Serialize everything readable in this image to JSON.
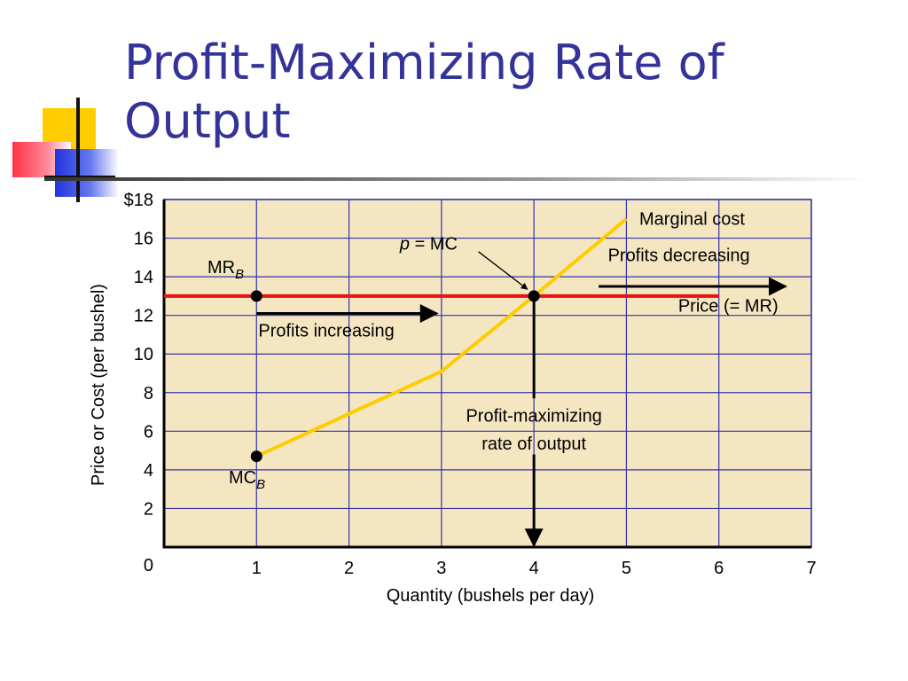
{
  "slide": {
    "title": "Profit-Maximizing Rate of Output"
  },
  "colors": {
    "title": "#333399",
    "plot_background": "#f5e6c2",
    "grid": "#3333aa",
    "price_line": "#ee1111",
    "mc_line": "#ffcc00",
    "arrows": "#000000"
  },
  "chart_data": {
    "type": "line",
    "xlabel": "Quantity (bushels per day)",
    "ylabel": "Price or Cost (per bushel)",
    "xlim": [
      0,
      7
    ],
    "ylim": [
      0,
      18
    ],
    "grid": true,
    "origin_label": "0",
    "x_ticks": [
      "1",
      "2",
      "3",
      "4",
      "5",
      "6",
      "7"
    ],
    "y_ticks": [
      "2",
      "4",
      "6",
      "8",
      "10",
      "12",
      "14",
      "16",
      "$18"
    ],
    "series": [
      {
        "name": "Marginal cost",
        "x": [
          1,
          2,
          3,
          4,
          5
        ],
        "y": [
          4.7,
          6.9,
          9.1,
          13.0,
          17.0
        ]
      },
      {
        "name": "Price (= MR)",
        "x": [
          0,
          6
        ],
        "y": [
          13,
          13
        ]
      }
    ],
    "points": [
      {
        "label": "MR",
        "sub": "B",
        "x": 1,
        "y": 13
      },
      {
        "label": "MC",
        "sub": "B",
        "x": 1,
        "y": 4.7
      },
      {
        "label": "p = MC",
        "x": 4,
        "y": 13
      }
    ],
    "annotations": {
      "profits_increasing": "Profits increasing",
      "profits_decreasing": "Profits decreasing",
      "profit_max_line1": "Profit-maximizing",
      "profit_max_line2": "rate of output",
      "p_equals": "p",
      "equals_mc": " = MC"
    }
  }
}
